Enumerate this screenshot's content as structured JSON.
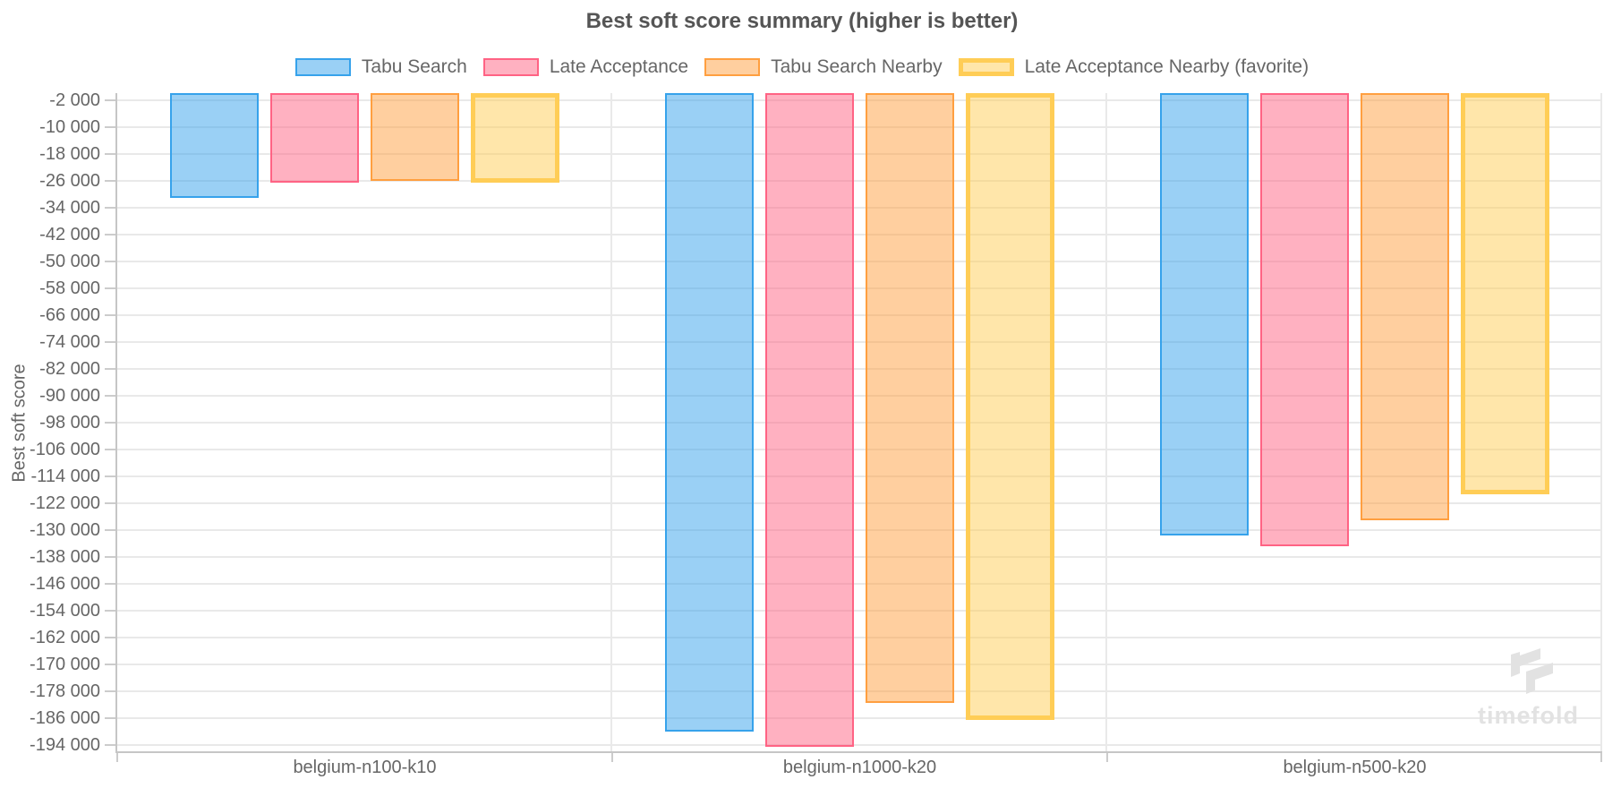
{
  "chart_data": {
    "type": "bar",
    "title": "Best soft score summary (higher is better)",
    "ylabel": "Best soft score",
    "xlabel": "",
    "categories": [
      "belgium-n100-k10",
      "belgium-n1000-k20",
      "belgium-n500-k20"
    ],
    "series": [
      {
        "name": "Tabu Search",
        "favorite": false,
        "border_color": "#36a2eb",
        "fill_color": "rgba(54,162,235,0.5)",
        "values": [
          -31200,
          -190200,
          -131600
        ]
      },
      {
        "name": "Late Acceptance",
        "favorite": false,
        "border_color": "#ff6384",
        "fill_color": "rgba(255,99,132,0.5)",
        "values": [
          -26600,
          -194700,
          -134900
        ]
      },
      {
        "name": "Tabu Search Nearby",
        "favorite": false,
        "border_color": "#ff9f40",
        "fill_color": "rgba(255,159,64,0.5)",
        "values": [
          -26100,
          -181600,
          -127200
        ]
      },
      {
        "name": "Late Acceptance Nearby (favorite)",
        "favorite": true,
        "border_color": "#ffcd56",
        "fill_color": "rgba(255,205,86,0.5)",
        "values": [
          -26700,
          -186700,
          -119400
        ]
      }
    ],
    "ylim": [
      0,
      -196000
    ],
    "ytick_labels": [
      "-2 000",
      "-10 000",
      "-18 000",
      "-26 000",
      "-34 000",
      "-42 000",
      "-50 000",
      "-58 000",
      "-66 000",
      "-74 000",
      "-82 000",
      "-90 000",
      "-98 000",
      "-106 000",
      "-114 000",
      "-122 000",
      "-130 000",
      "-138 000",
      "-146 000",
      "-154 000",
      "-162 000",
      "-170 000",
      "-178 000",
      "-186 000",
      "-194 000"
    ],
    "grid": true,
    "legend_position": "top",
    "watermark_text": "timefold"
  }
}
